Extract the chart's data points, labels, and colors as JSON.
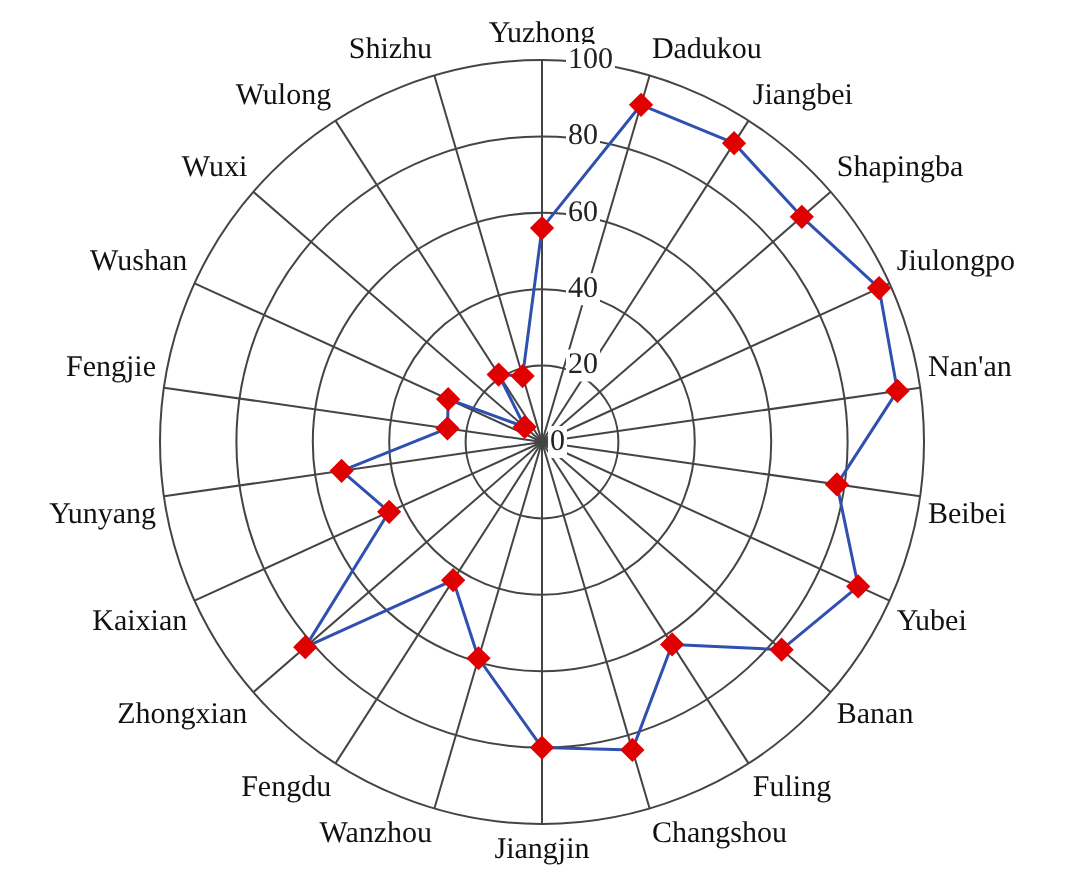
{
  "chart_data": {
    "type": "radar",
    "categories": [
      "Yuzhong",
      "Dadukou",
      "Jiangbei",
      "Shapingba",
      "Jiulongpo",
      "Nan'an",
      "Beibei",
      "Yubei",
      "Banan",
      "Fuling",
      "Changshou",
      "Jiangjin",
      "Wanzhou",
      "Fengdu",
      "Zhongxian",
      "Kaixian",
      "Yunyang",
      "Fengjie",
      "Wushan",
      "Wuxi",
      "Wulong",
      "Shizhu"
    ],
    "series": [
      {
        "color": "#3050b0",
        "colors": [
          "#e00000",
          "#e00000",
          "#e00000",
          "#e00000",
          "#e00000",
          "#e00000",
          "#e00000",
          "#e00000",
          "#e00000",
          "#e00000",
          "#e00000",
          "#e00000",
          "#e00000",
          "#e00000",
          "#e00000",
          "#e00000",
          "#e00000",
          "#e00000",
          "#e00000",
          "#e00000",
          "#e00000",
          "#e00000"
        ],
        "values": [
          56,
          92,
          93,
          90,
          97,
          94,
          78,
          91,
          83,
          63,
          84,
          80,
          59,
          43,
          82,
          44,
          53,
          25,
          27,
          6,
          21,
          18
        ]
      }
    ],
    "ylim": [
      0,
      100
    ],
    "yticks": [
      0,
      20,
      40,
      60,
      80,
      100
    ],
    "grid": true,
    "legend": false,
    "marker": "diamond",
    "line_style": "solid"
  }
}
